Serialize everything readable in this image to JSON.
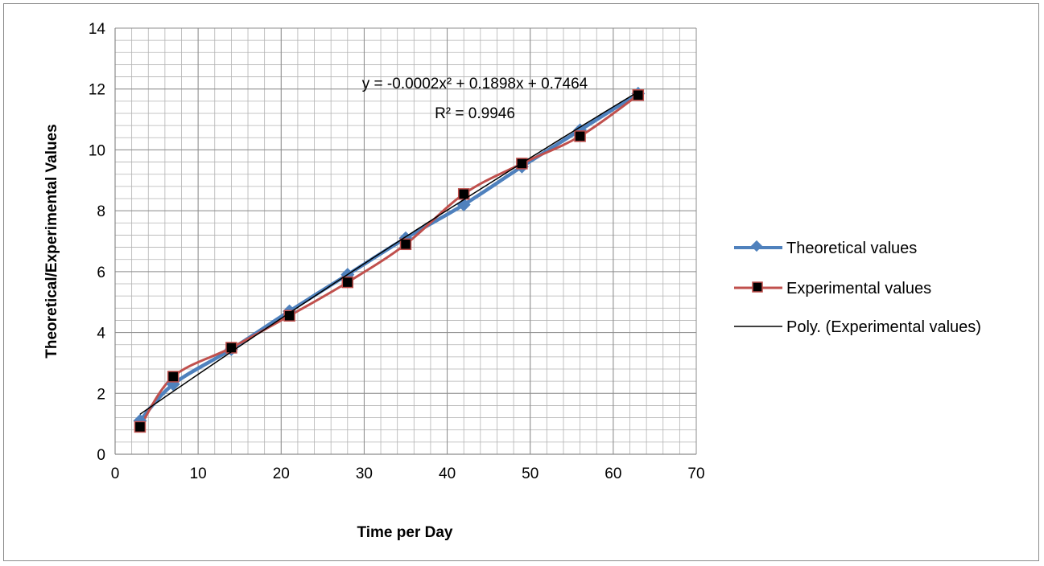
{
  "chart_data": {
    "type": "line",
    "title": "",
    "xlabel": "Time per Day",
    "ylabel": "Theoretical/Experimental Values",
    "xlim": [
      0,
      70
    ],
    "ylim": [
      0,
      14
    ],
    "x_ticks": [
      0,
      10,
      20,
      30,
      40,
      50,
      60,
      70
    ],
    "y_ticks": [
      0,
      2,
      4,
      6,
      8,
      10,
      12,
      14
    ],
    "x_tick_labels": [
      "0",
      "10",
      "20",
      "30",
      "40",
      "50",
      "60",
      "70"
    ],
    "y_tick_labels": [
      "0",
      "2",
      "4",
      "6",
      "8",
      "10",
      "12",
      "14"
    ],
    "grid": true,
    "minor_grid": true,
    "legend_position": "right",
    "series": [
      {
        "name": "Theoretical values",
        "color": "#4f81bd",
        "marker": "diamond",
        "x": [
          3,
          7,
          14,
          21,
          28,
          35,
          42,
          49,
          56,
          63
        ],
        "y": [
          1.1,
          2.3,
          3.45,
          4.7,
          5.9,
          7.1,
          8.2,
          9.45,
          10.65,
          11.85
        ]
      },
      {
        "name": "Experimental values",
        "color": "#c0504d",
        "marker": "square",
        "x": [
          3,
          7,
          14,
          21,
          28,
          35,
          42,
          49,
          56,
          63
        ],
        "y": [
          0.9,
          2.55,
          3.5,
          4.55,
          5.65,
          6.9,
          8.55,
          9.55,
          10.45,
          11.8
        ]
      }
    ],
    "trendline": {
      "name": "Poly. (Experimental values)",
      "color": "#000000",
      "coefficients": [
        -0.0002,
        0.1898,
        0.7464
      ],
      "x_range": [
        3,
        63
      ],
      "equation_line1": "y = -0.0002x² + 0.1898x + 0.7464",
      "equation_line2": "R² = 0.9946"
    }
  }
}
